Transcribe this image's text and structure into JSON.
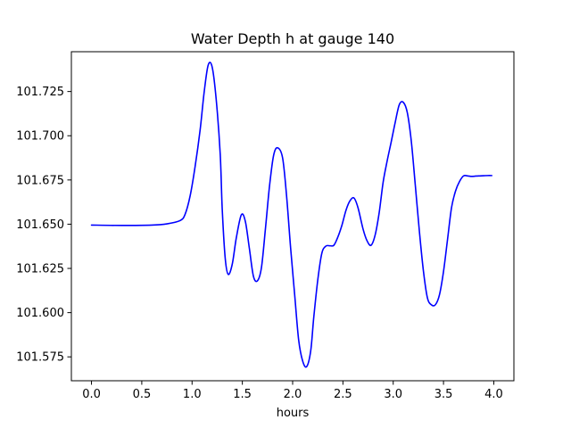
{
  "chart_data": {
    "type": "line",
    "title": "Water Depth h at gauge 140",
    "xlabel": "hours",
    "ylabel": "",
    "xlim": [
      -0.2,
      4.2
    ],
    "ylim": [
      101.5615,
      101.7475
    ],
    "xticks": [
      0.0,
      0.5,
      1.0,
      1.5,
      2.0,
      2.5,
      3.0,
      3.5,
      4.0
    ],
    "xtick_labels": [
      "0.0",
      "0.5",
      "1.0",
      "1.5",
      "2.0",
      "2.5",
      "3.0",
      "3.5",
      "4.0"
    ],
    "yticks": [
      101.575,
      101.6,
      101.625,
      101.65,
      101.675,
      101.7,
      101.725
    ],
    "ytick_labels": [
      "101.575",
      "101.600",
      "101.625",
      "101.650",
      "101.675",
      "101.700",
      "101.725"
    ],
    "grid": false,
    "series": [
      {
        "color": "#0000ff",
        "x": [
          0.0,
          0.3,
          0.6,
          0.75,
          0.88,
          0.93,
          0.98,
          1.03,
          1.08,
          1.12,
          1.16,
          1.2,
          1.24,
          1.28,
          1.3,
          1.33,
          1.36,
          1.4,
          1.44,
          1.49,
          1.53,
          1.57,
          1.61,
          1.65,
          1.69,
          1.73,
          1.77,
          1.81,
          1.85,
          1.9,
          1.94,
          1.98,
          2.02,
          2.06,
          2.1,
          2.14,
          2.18,
          2.21,
          2.25,
          2.29,
          2.33,
          2.37,
          2.41,
          2.45,
          2.49,
          2.53,
          2.57,
          2.61,
          2.65,
          2.7,
          2.74,
          2.78,
          2.82,
          2.86,
          2.9,
          2.94,
          2.98,
          3.02,
          3.06,
          3.1,
          3.14,
          3.18,
          3.22,
          3.26,
          3.3,
          3.34,
          3.38,
          3.42,
          3.46,
          3.5,
          3.54,
          3.58,
          3.62,
          3.66,
          3.7,
          3.74,
          3.78,
          3.82,
          3.86,
          3.9,
          3.94,
          3.98
        ],
        "y": [
          101.6495,
          101.6493,
          101.6495,
          101.6502,
          101.652,
          101.6555,
          101.6658,
          101.6825,
          101.7032,
          101.7245,
          101.7399,
          101.7388,
          101.7205,
          101.6895,
          101.6584,
          101.6305,
          101.6216,
          101.6275,
          101.6423,
          101.6553,
          101.6515,
          101.6362,
          101.6206,
          101.618,
          101.6255,
          101.6477,
          101.6715,
          101.6887,
          101.6932,
          101.6875,
          101.6658,
          101.6365,
          101.6103,
          101.5845,
          101.5726,
          101.5695,
          101.5785,
          101.5973,
          101.6185,
          101.6335,
          101.6376,
          101.6378,
          101.6381,
          101.6428,
          101.6494,
          101.6578,
          101.6632,
          101.6648,
          101.6593,
          101.6473,
          101.6406,
          101.6381,
          101.6438,
          101.6563,
          101.6738,
          101.6858,
          101.6965,
          101.7076,
          101.7175,
          101.7189,
          101.7131,
          101.6968,
          101.6718,
          101.6461,
          101.6237,
          101.6084,
          101.6044,
          101.6045,
          101.6101,
          101.6232,
          101.6413,
          101.6594,
          101.6688,
          101.6742,
          101.6773,
          101.6773,
          101.677,
          101.6772,
          101.6773,
          101.6774,
          101.6775,
          101.6775
        ]
      }
    ]
  }
}
